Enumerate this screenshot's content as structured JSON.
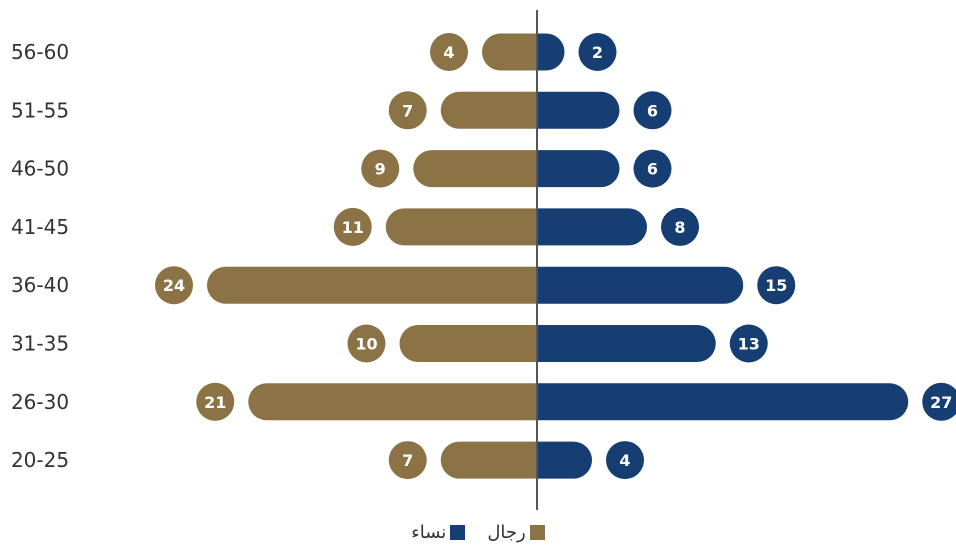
{
  "chart_data": {
    "type": "bar",
    "orientation": "horizontal-diverging",
    "categories": [
      "56-60",
      "51-55",
      "46-50",
      "41-45",
      "36-40",
      "31-35",
      "26-30",
      "20-25"
    ],
    "series": [
      {
        "name": "رجال",
        "side": "left",
        "color": "#8b7346",
        "values": [
          4,
          7,
          9,
          11,
          24,
          10,
          21,
          7
        ]
      },
      {
        "name": "نساء",
        "side": "right",
        "color": "#163e72",
        "values": [
          2,
          6,
          6,
          8,
          15,
          13,
          27,
          4
        ]
      }
    ],
    "axis_color": "#555555",
    "grid": false,
    "legend_position": "bottom-center"
  }
}
